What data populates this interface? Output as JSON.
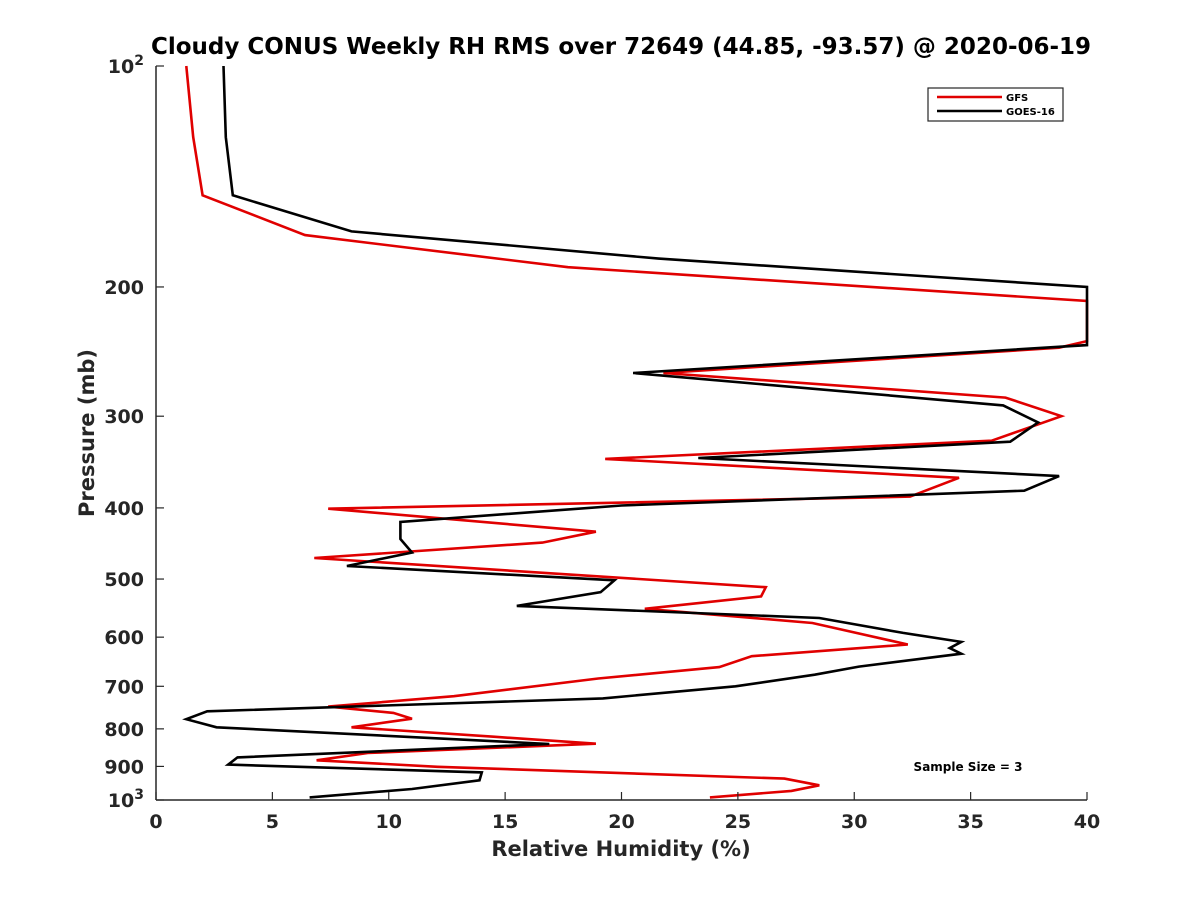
{
  "chart_data": {
    "type": "line",
    "title": "Cloudy CONUS Weekly RH RMS over 72649 (44.85, -93.57) @ 2020-06-19",
    "xlabel": "Relative Humidity (%)",
    "ylabel": "Pressure (mb)",
    "xlim": [
      0,
      40
    ],
    "ylim": [
      100,
      1000
    ],
    "y_scale": "log",
    "y_reversed": true,
    "x_ticks": [
      "0",
      "5",
      "10",
      "15",
      "20",
      "25",
      "30",
      "35",
      "40"
    ],
    "y_ticks": [
      {
        "value": 100,
        "base": "10",
        "exp": "2"
      },
      {
        "value": 200,
        "label": "200"
      },
      {
        "value": 300,
        "label": "300"
      },
      {
        "value": 400,
        "label": "400"
      },
      {
        "value": 500,
        "label": "500"
      },
      {
        "value": 600,
        "label": "600"
      },
      {
        "value": 700,
        "label": "700"
      },
      {
        "value": 800,
        "label": "800"
      },
      {
        "value": 900,
        "label": "900"
      },
      {
        "value": 1000,
        "base": "10",
        "exp": "3"
      }
    ],
    "legend_position": "top-right",
    "annotation": "Sample Size = 3",
    "series": [
      {
        "name": "GFS",
        "color": "#e00000",
        "points": [
          [
            1.3,
            100
          ],
          [
            1.6,
            125
          ],
          [
            2.0,
            150
          ],
          [
            6.4,
            170
          ],
          [
            17.7,
            188
          ],
          [
            40.0,
            209
          ],
          [
            40.0,
            237
          ],
          [
            38.8,
            242
          ],
          [
            21.8,
            262
          ],
          [
            36.5,
            283
          ],
          [
            38.9,
            300
          ],
          [
            35.9,
            324
          ],
          [
            19.3,
            343
          ],
          [
            34.5,
            364
          ],
          [
            32.4,
            386
          ],
          [
            7.4,
            401
          ],
          [
            18.9,
            431
          ],
          [
            16.6,
            446
          ],
          [
            6.8,
            468
          ],
          [
            26.2,
            513
          ],
          [
            26.0,
            528
          ],
          [
            21.0,
            549
          ],
          [
            28.2,
            574
          ],
          [
            32.3,
            614
          ],
          [
            25.6,
            637
          ],
          [
            24.2,
            659
          ],
          [
            19.0,
            683
          ],
          [
            12.8,
            722
          ],
          [
            7.4,
            746
          ],
          [
            10.2,
            761
          ],
          [
            11.0,
            775
          ],
          [
            8.4,
            796
          ],
          [
            14.5,
            820
          ],
          [
            18.9,
            838
          ],
          [
            9.1,
            863
          ],
          [
            6.9,
            883
          ],
          [
            12.1,
            901
          ],
          [
            27.0,
            935
          ],
          [
            28.5,
            955
          ],
          [
            27.3,
            972
          ],
          [
            23.8,
            992
          ]
        ]
      },
      {
        "name": "GOES-16",
        "color": "#000000",
        "points": [
          [
            2.9,
            100
          ],
          [
            3.0,
            125
          ],
          [
            3.3,
            150
          ],
          [
            8.4,
            168
          ],
          [
            21.6,
            183
          ],
          [
            40.0,
            200
          ],
          [
            40.0,
            240
          ],
          [
            20.5,
            262
          ],
          [
            36.4,
            290
          ],
          [
            37.9,
            306
          ],
          [
            36.7,
            325
          ],
          [
            23.3,
            342
          ],
          [
            38.8,
            362
          ],
          [
            37.3,
            379
          ],
          [
            20.0,
            397
          ],
          [
            10.5,
            418
          ],
          [
            10.5,
            441
          ],
          [
            11.0,
            460
          ],
          [
            8.2,
            480
          ],
          [
            19.7,
            502
          ],
          [
            19.1,
            521
          ],
          [
            15.5,
            544
          ],
          [
            28.5,
            565
          ],
          [
            32.1,
            592
          ],
          [
            34.6,
            609
          ],
          [
            34.1,
            621
          ],
          [
            34.6,
            632
          ],
          [
            30.2,
            658
          ],
          [
            28.3,
            675
          ],
          [
            24.9,
            700
          ],
          [
            19.2,
            727
          ],
          [
            2.2,
            757
          ],
          [
            1.3,
            776
          ],
          [
            2.6,
            796
          ],
          [
            16.9,
            839
          ],
          [
            3.5,
            875
          ],
          [
            3.1,
            895
          ],
          [
            14.0,
            917
          ],
          [
            13.9,
            940
          ],
          [
            11.0,
            966
          ],
          [
            6.6,
            992
          ]
        ]
      }
    ]
  }
}
